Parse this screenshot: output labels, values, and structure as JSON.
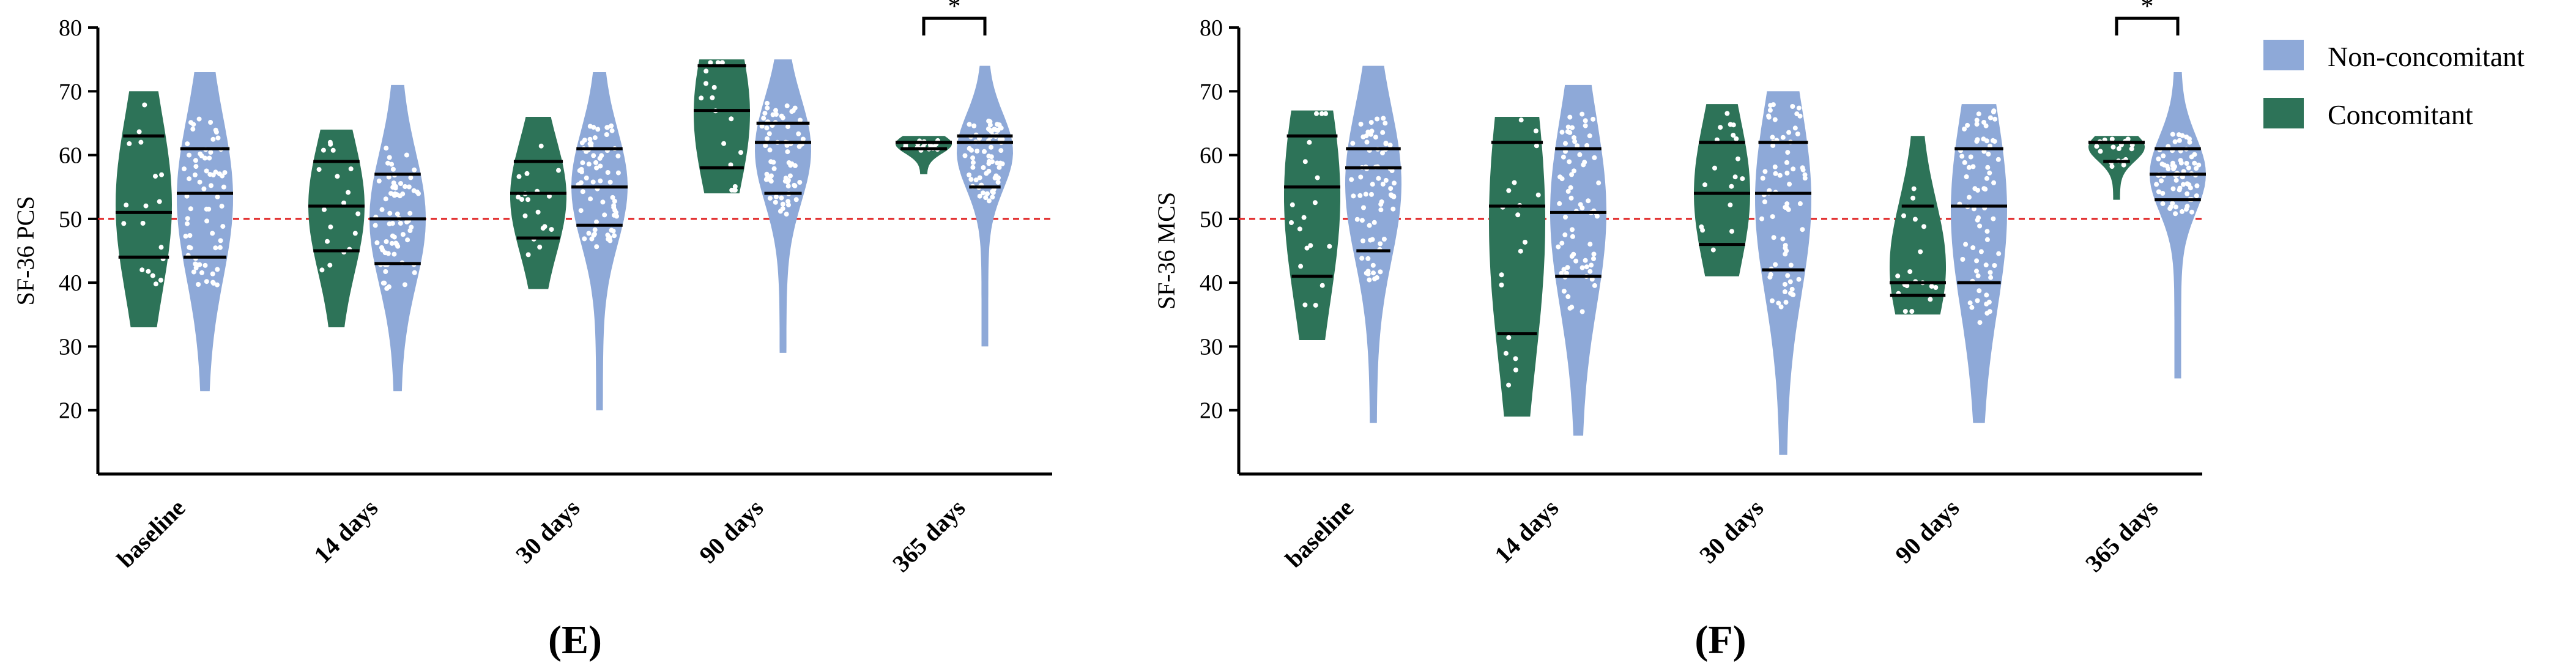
{
  "colors": {
    "non_concomitant": "#8ea9d8",
    "concomitant": "#2d7358",
    "reference_line": "#e02020",
    "axis": "#000000",
    "dots": "#ffffff"
  },
  "legend": {
    "items": [
      {
        "label": "Non-concomitant",
        "color": "#8ea9d8"
      },
      {
        "label": "Concomitant",
        "color": "#2d7358"
      }
    ]
  },
  "chart_data": [
    {
      "type": "violin",
      "panel_label": "(E)",
      "title": "",
      "ylabel": "SF-36 PCS",
      "xlabel": "",
      "ylim": [
        10,
        80
      ],
      "yticks": [
        20,
        30,
        40,
        50,
        60,
        70,
        80
      ],
      "reference_line": 50,
      "categories": [
        "baseline",
        "14 days",
        "30 days",
        "90 days",
        "365 days"
      ],
      "series": [
        {
          "name": "Concomitant",
          "min": [
            33,
            33,
            39,
            54,
            57
          ],
          "max": [
            70,
            64,
            66,
            75,
            63
          ],
          "median": [
            51,
            52,
            54,
            67,
            62
          ],
          "q1": [
            44,
            45,
            47,
            58,
            61
          ],
          "q3": [
            63,
            59,
            59,
            74,
            62
          ]
        },
        {
          "name": "Non-concomitant",
          "min": [
            23,
            23,
            20,
            29,
            30
          ],
          "max": [
            73,
            71,
            73,
            75,
            74
          ],
          "median": [
            54,
            50,
            55,
            62,
            62
          ],
          "q1": [
            44,
            43,
            49,
            54,
            55
          ],
          "q3": [
            61,
            57,
            61,
            65,
            63
          ]
        }
      ],
      "annotations": [
        {
          "category": "365 days",
          "text": "*"
        }
      ]
    },
    {
      "type": "violin",
      "panel_label": "(F)",
      "title": "",
      "ylabel": "SF-36 MCS",
      "xlabel": "",
      "ylim": [
        10,
        80
      ],
      "yticks": [
        20,
        30,
        40,
        50,
        60,
        70,
        80
      ],
      "reference_line": 50,
      "categories": [
        "baseline",
        "14 days",
        "30 days",
        "90 days",
        "365 days"
      ],
      "series": [
        {
          "name": "Concomitant",
          "min": [
            31,
            19,
            41,
            35,
            53
          ],
          "max": [
            67,
            66,
            68,
            63,
            63
          ],
          "median": [
            55,
            52,
            54,
            40,
            62
          ],
          "q1": [
            41,
            32,
            46,
            38,
            59
          ],
          "q3": [
            63,
            62,
            62,
            52,
            62
          ]
        },
        {
          "name": "Non-concomitant",
          "min": [
            18,
            16,
            13,
            18,
            25
          ],
          "max": [
            74,
            71,
            70,
            68,
            73
          ],
          "median": [
            58,
            51,
            54,
            52,
            57
          ],
          "q1": [
            45,
            41,
            42,
            40,
            53
          ],
          "q3": [
            61,
            61,
            62,
            61,
            61
          ]
        }
      ],
      "annotations": [
        {
          "category": "365 days",
          "text": "*"
        }
      ]
    }
  ]
}
